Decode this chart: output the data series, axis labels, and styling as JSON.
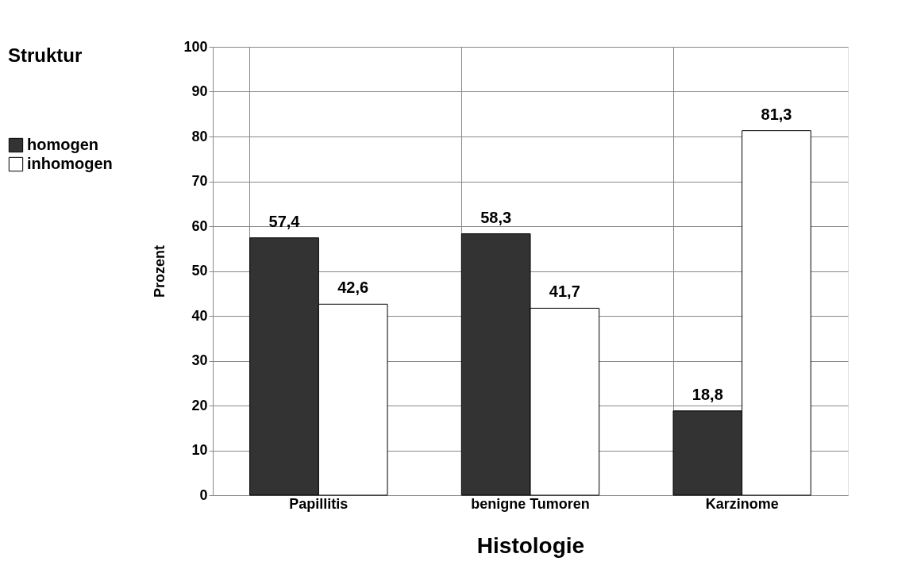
{
  "chart_data": {
    "type": "bar",
    "legend_title": "Struktur",
    "xlabel": "Histologie",
    "ylabel": "Prozent",
    "categories": [
      "Papillitis",
      "benigne Tumoren",
      "Karzinome"
    ],
    "series": [
      {
        "name": "homogen",
        "color": "#333333",
        "values": [
          57.4,
          58.3,
          18.8
        ],
        "value_labels": [
          "57,4",
          "58,3",
          "18,8"
        ]
      },
      {
        "name": "inhomogen",
        "color": "#ffffff",
        "values": [
          42.6,
          41.7,
          81.3
        ],
        "value_labels": [
          "42,6",
          "41,7",
          "81,3"
        ]
      }
    ],
    "ylim": [
      0,
      100
    ],
    "yticks": [
      0,
      10,
      20,
      30,
      40,
      50,
      60,
      70,
      80,
      90,
      100
    ],
    "grid": true,
    "legend": "left"
  }
}
